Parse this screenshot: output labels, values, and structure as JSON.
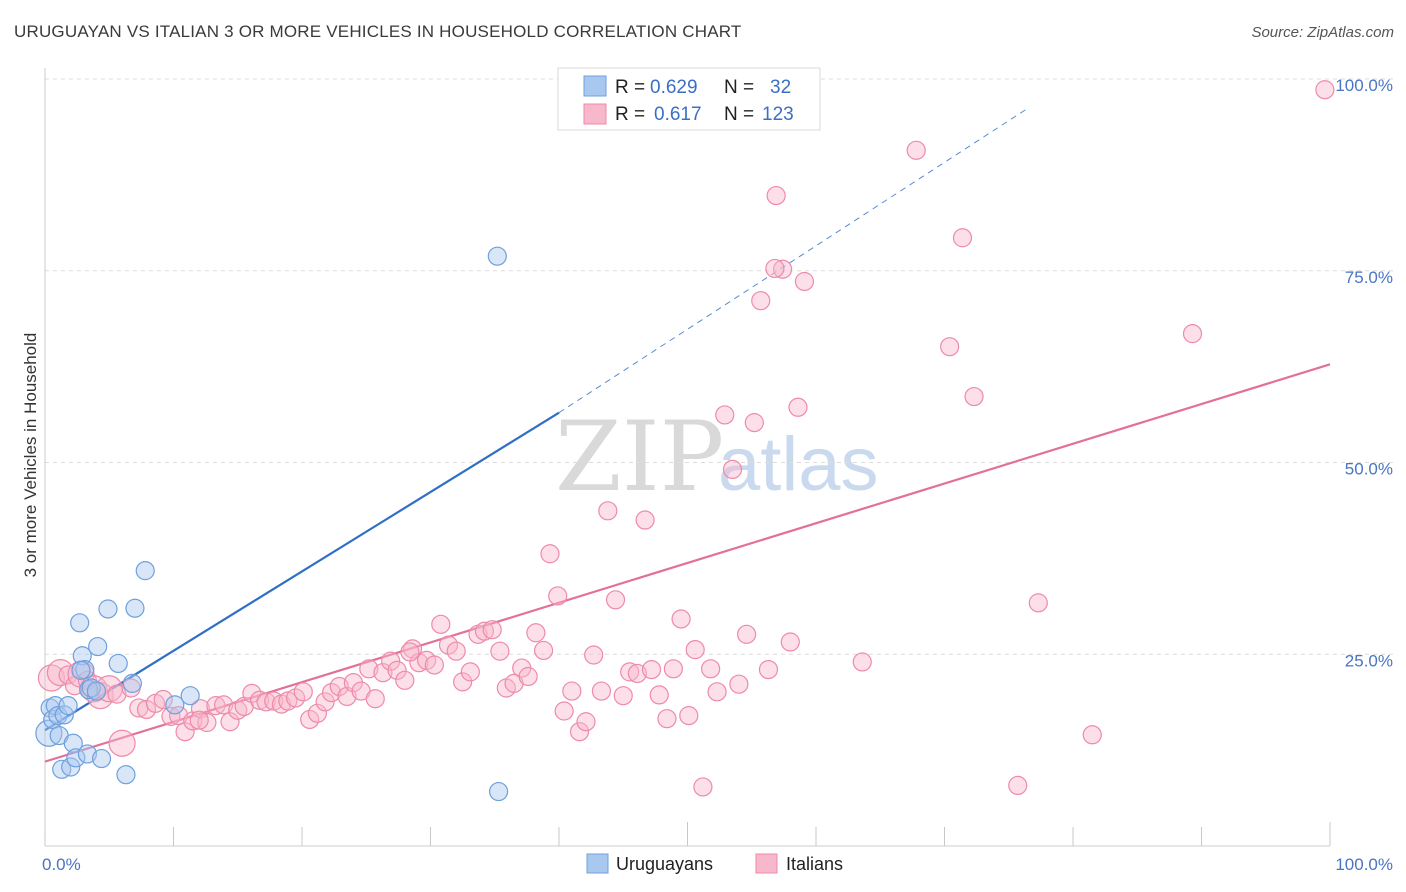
{
  "title": "URUGUAYAN VS ITALIAN 3 OR MORE VEHICLES IN HOUSEHOLD CORRELATION CHART",
  "source": "Source: ZipAtlas.com",
  "watermark": {
    "zip": "ZIP",
    "atlas": "atlas"
  },
  "legend_box": {
    "r_label": "R =",
    "n_label": "N =",
    "rows": [
      {
        "name": "Uruguayans",
        "r": "0.629",
        "n": "32",
        "color": "#a8c8f0",
        "stroke": "#6fa0dc"
      },
      {
        "name": "Italians",
        "r": "0.617",
        "n": "123",
        "color": "#f8b8cc",
        "stroke": "#ee8aaa"
      }
    ]
  },
  "bottom_legend": [
    "Uruguayans",
    "Italians"
  ],
  "chart_data": {
    "type": "scatter",
    "title": "URUGUAYAN VS ITALIAN 3 OR MORE VEHICLES IN HOUSEHOLD CORRELATION CHART",
    "xlabel": "",
    "ylabel": "3 or more Vehicles in Household",
    "xlim": [
      0,
      100
    ],
    "ylim": [
      0,
      100
    ],
    "x_tick_labels": [
      {
        "value": 0,
        "label": "0.0%"
      },
      {
        "value": 100,
        "label": "100.0%"
      }
    ],
    "y_tick_labels": [
      {
        "value": 25,
        "label": "25.0%"
      },
      {
        "value": 50,
        "label": "50.0%"
      },
      {
        "value": 75,
        "label": "75.0%"
      },
      {
        "value": 100,
        "label": "100.0%"
      }
    ],
    "series": [
      {
        "name": "Uruguayans",
        "color": "#a8c8f0",
        "stroke": "#6fa0dc",
        "line_color": "#2f6fc6",
        "trend": {
          "x0": 0,
          "y0": 15.1,
          "x1": 40,
          "y1": 56.5,
          "dash_to_x": 76.5,
          "dash_to_y": 96.2
        },
        "points": [
          {
            "x": 0.3,
            "y": 14.7,
            "r": 13
          },
          {
            "x": 0.4,
            "y": 18.0
          },
          {
            "x": 0.6,
            "y": 16.5
          },
          {
            "x": 0.8,
            "y": 18.3
          },
          {
            "x": 1.0,
            "y": 17.0
          },
          {
            "x": 1.1,
            "y": 14.4
          },
          {
            "x": 1.3,
            "y": 10.0
          },
          {
            "x": 1.5,
            "y": 17.1
          },
          {
            "x": 1.8,
            "y": 18.3
          },
          {
            "x": 2.0,
            "y": 10.3
          },
          {
            "x": 2.2,
            "y": 13.4
          },
          {
            "x": 2.4,
            "y": 11.5
          },
          {
            "x": 2.7,
            "y": 29.1
          },
          {
            "x": 2.9,
            "y": 24.8
          },
          {
            "x": 3.1,
            "y": 23.0
          },
          {
            "x": 3.3,
            "y": 12.0
          },
          {
            "x": 3.4,
            "y": 20.4
          },
          {
            "x": 3.6,
            "y": 20.6
          },
          {
            "x": 4.1,
            "y": 26.0
          },
          {
            "x": 4.4,
            "y": 11.4
          },
          {
            "x": 4.9,
            "y": 30.9
          },
          {
            "x": 5.7,
            "y": 23.8
          },
          {
            "x": 6.3,
            "y": 9.3
          },
          {
            "x": 6.8,
            "y": 21.2
          },
          {
            "x": 7.0,
            "y": 31.0
          },
          {
            "x": 7.8,
            "y": 35.9
          },
          {
            "x": 10.1,
            "y": 18.4
          },
          {
            "x": 11.3,
            "y": 19.6
          },
          {
            "x": 35.3,
            "y": 7.1
          },
          {
            "x": 35.2,
            "y": 76.9
          },
          {
            "x": 2.8,
            "y": 22.9
          },
          {
            "x": 4.0,
            "y": 20.2
          }
        ]
      },
      {
        "name": "Italians",
        "color": "#f8b8cc",
        "stroke": "#ee8aaa",
        "line_color": "#e2709a",
        "trend": {
          "x0": 0,
          "y0": 11.0,
          "x1": 100,
          "y1": 62.8
        },
        "points": [
          {
            "x": 0.5,
            "y": 21.9,
            "r": 13
          },
          {
            "x": 1.2,
            "y": 22.6,
            "r": 13
          },
          {
            "x": 1.8,
            "y": 22.3
          },
          {
            "x": 2.3,
            "y": 20.9
          },
          {
            "x": 2.8,
            "y": 22.4,
            "r": 13
          },
          {
            "x": 3.3,
            "y": 21.6
          },
          {
            "x": 3.8,
            "y": 20.5,
            "r": 13
          },
          {
            "x": 4.3,
            "y": 19.6,
            "r": 13
          },
          {
            "x": 5.0,
            "y": 20.5,
            "r": 13
          },
          {
            "x": 5.6,
            "y": 19.8
          },
          {
            "x": 6.0,
            "y": 13.4,
            "r": 13
          },
          {
            "x": 6.7,
            "y": 20.6
          },
          {
            "x": 7.3,
            "y": 18.0
          },
          {
            "x": 7.9,
            "y": 17.8
          },
          {
            "x": 8.6,
            "y": 18.6
          },
          {
            "x": 9.2,
            "y": 19.1
          },
          {
            "x": 9.8,
            "y": 16.9
          },
          {
            "x": 10.4,
            "y": 17.0
          },
          {
            "x": 10.9,
            "y": 14.9
          },
          {
            "x": 11.5,
            "y": 16.3
          },
          {
            "x": 12.1,
            "y": 17.9
          },
          {
            "x": 12.6,
            "y": 16.1
          },
          {
            "x": 13.3,
            "y": 18.3
          },
          {
            "x": 13.9,
            "y": 18.4
          },
          {
            "x": 14.4,
            "y": 16.2
          },
          {
            "x": 15.0,
            "y": 17.7
          },
          {
            "x": 15.5,
            "y": 18.2
          },
          {
            "x": 16.1,
            "y": 19.9
          },
          {
            "x": 16.7,
            "y": 19.0
          },
          {
            "x": 17.2,
            "y": 18.8
          },
          {
            "x": 17.8,
            "y": 18.9
          },
          {
            "x": 18.4,
            "y": 18.5
          },
          {
            "x": 18.9,
            "y": 18.9
          },
          {
            "x": 19.5,
            "y": 19.3
          },
          {
            "x": 20.1,
            "y": 20.1
          },
          {
            "x": 20.6,
            "y": 16.5
          },
          {
            "x": 21.2,
            "y": 17.3
          },
          {
            "x": 21.8,
            "y": 18.8
          },
          {
            "x": 22.3,
            "y": 20.0
          },
          {
            "x": 22.9,
            "y": 20.8
          },
          {
            "x": 23.5,
            "y": 19.5
          },
          {
            "x": 24.0,
            "y": 21.3
          },
          {
            "x": 24.6,
            "y": 20.2
          },
          {
            "x": 25.2,
            "y": 23.1
          },
          {
            "x": 25.7,
            "y": 19.2
          },
          {
            "x": 26.3,
            "y": 22.6
          },
          {
            "x": 26.9,
            "y": 24.1
          },
          {
            "x": 27.4,
            "y": 22.9
          },
          {
            "x": 28.0,
            "y": 21.6
          },
          {
            "x": 28.6,
            "y": 25.7
          },
          {
            "x": 29.1,
            "y": 23.9
          },
          {
            "x": 29.7,
            "y": 24.2
          },
          {
            "x": 30.3,
            "y": 23.6
          },
          {
            "x": 30.8,
            "y": 28.9
          },
          {
            "x": 31.4,
            "y": 26.2
          },
          {
            "x": 32.0,
            "y": 25.4
          },
          {
            "x": 32.5,
            "y": 21.4
          },
          {
            "x": 33.1,
            "y": 22.7
          },
          {
            "x": 33.7,
            "y": 27.6
          },
          {
            "x": 34.2,
            "y": 28.0
          },
          {
            "x": 34.8,
            "y": 28.2
          },
          {
            "x": 35.4,
            "y": 25.4
          },
          {
            "x": 35.9,
            "y": 20.6
          },
          {
            "x": 36.5,
            "y": 21.2
          },
          {
            "x": 37.1,
            "y": 23.2
          },
          {
            "x": 37.6,
            "y": 22.1
          },
          {
            "x": 38.2,
            "y": 27.8
          },
          {
            "x": 38.8,
            "y": 25.5
          },
          {
            "x": 39.3,
            "y": 38.1
          },
          {
            "x": 39.9,
            "y": 32.6
          },
          {
            "x": 40.4,
            "y": 17.6
          },
          {
            "x": 41.0,
            "y": 20.2
          },
          {
            "x": 41.6,
            "y": 14.9
          },
          {
            "x": 42.1,
            "y": 16.2
          },
          {
            "x": 42.7,
            "y": 24.9
          },
          {
            "x": 43.3,
            "y": 20.2
          },
          {
            "x": 43.8,
            "y": 43.7
          },
          {
            "x": 44.4,
            "y": 32.1
          },
          {
            "x": 45.0,
            "y": 19.6
          },
          {
            "x": 45.5,
            "y": 22.7
          },
          {
            "x": 46.1,
            "y": 22.5
          },
          {
            "x": 46.7,
            "y": 42.5
          },
          {
            "x": 47.2,
            "y": 23.0
          },
          {
            "x": 47.8,
            "y": 19.7
          },
          {
            "x": 48.4,
            "y": 16.6
          },
          {
            "x": 48.9,
            "y": 23.1
          },
          {
            "x": 49.5,
            "y": 29.6
          },
          {
            "x": 50.1,
            "y": 17.0
          },
          {
            "x": 50.6,
            "y": 25.6
          },
          {
            "x": 51.2,
            "y": 7.7
          },
          {
            "x": 51.8,
            "y": 23.1
          },
          {
            "x": 52.3,
            "y": 20.1
          },
          {
            "x": 52.9,
            "y": 56.2
          },
          {
            "x": 53.5,
            "y": 49.1
          },
          {
            "x": 54.0,
            "y": 21.1
          },
          {
            "x": 54.6,
            "y": 27.6
          },
          {
            "x": 55.2,
            "y": 55.2
          },
          {
            "x": 55.7,
            "y": 71.1
          },
          {
            "x": 56.3,
            "y": 23.0
          },
          {
            "x": 56.9,
            "y": 84.8
          },
          {
            "x": 57.4,
            "y": 75.2
          },
          {
            "x": 58.0,
            "y": 26.6
          },
          {
            "x": 58.6,
            "y": 57.2
          },
          {
            "x": 59.1,
            "y": 73.6
          },
          {
            "x": 63.6,
            "y": 24.0
          },
          {
            "x": 67.8,
            "y": 90.7
          },
          {
            "x": 70.4,
            "y": 65.1
          },
          {
            "x": 71.4,
            "y": 79.3
          },
          {
            "x": 72.3,
            "y": 58.6
          },
          {
            "x": 75.7,
            "y": 7.9
          },
          {
            "x": 77.3,
            "y": 31.7
          },
          {
            "x": 81.5,
            "y": 14.5
          },
          {
            "x": 89.3,
            "y": 66.8
          },
          {
            "x": 99.6,
            "y": 98.6
          },
          {
            "x": 56.8,
            "y": 75.3
          },
          {
            "x": 28.4,
            "y": 25.3
          },
          {
            "x": 12.0,
            "y": 16.4
          }
        ]
      }
    ]
  }
}
